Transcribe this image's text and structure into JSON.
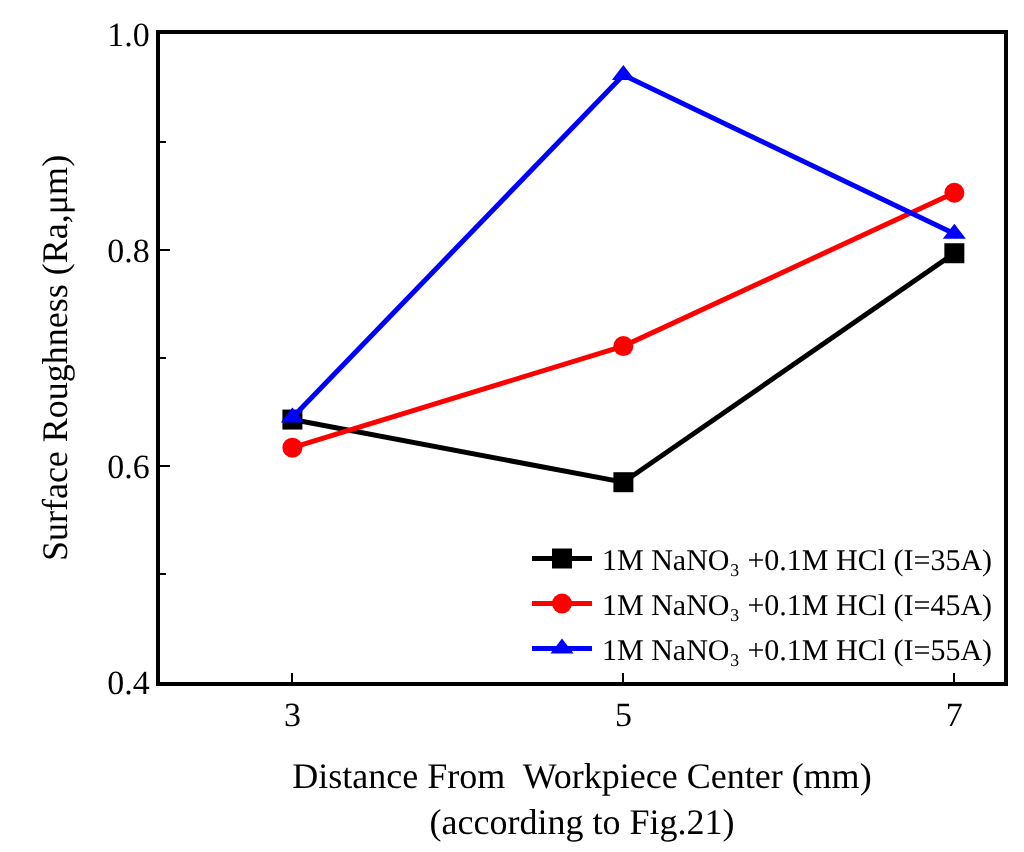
{
  "chart_data": {
    "type": "line",
    "xlabel": "Distance From  Workpiece Center (mm)\n(according to Fig.21)",
    "ylabel": "Surface Roughness (Ra,μm)",
    "x": [
      3,
      5,
      7
    ],
    "xlim": [
      2.2,
      7.3
    ],
    "xticks": [
      3,
      5,
      7
    ],
    "ylim": [
      0.4,
      1.0
    ],
    "yticks": [
      {
        "value": 0.4,
        "label": "0.4"
      },
      {
        "value": 0.6,
        "label": "0.6"
      },
      {
        "value": 0.8,
        "label": "0.8"
      },
      {
        "value": 1.0,
        "label": "1.0"
      }
    ],
    "series": [
      {
        "name": "1M NaNO₃ +0.1M HCl (I=35A)",
        "color": "#000000",
        "marker": "square",
        "values": [
          0.643,
          0.585,
          0.797
        ]
      },
      {
        "name": "1M NaNO₃ +0.1M HCl (I=45A)",
        "color": "#ff0000",
        "marker": "circle",
        "values": [
          0.617,
          0.711,
          0.853
        ]
      },
      {
        "name": "1M NaNO₃ +0.1M HCl (I=55A)",
        "color": "#0000ff",
        "marker": "triangle",
        "values": [
          0.645,
          0.962,
          0.815
        ]
      }
    ],
    "legend": "bottom right"
  }
}
